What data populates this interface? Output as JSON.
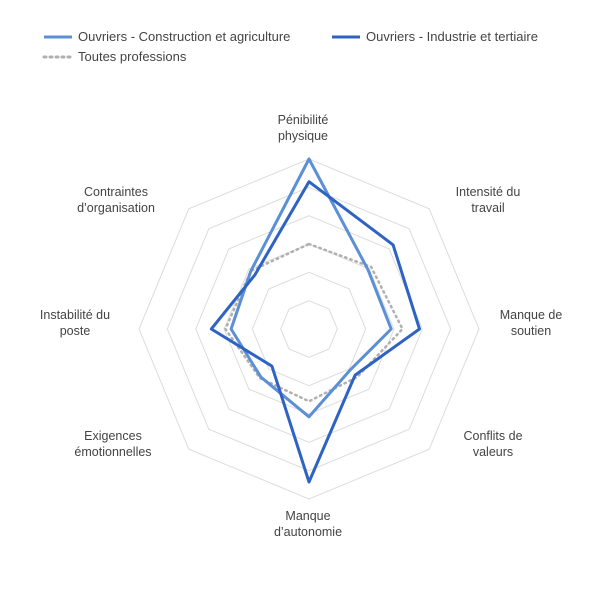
{
  "chart_data": {
    "type": "radar",
    "categories": [
      [
        "Pénibilité",
        "physique"
      ],
      [
        "Intensité du",
        "travail"
      ],
      [
        "Manque de",
        "soutien"
      ],
      [
        "Conflits de",
        "valeurs"
      ],
      [
        "Manque",
        "d’autonomie"
      ],
      [
        "Exigences",
        "émotionnelles"
      ],
      [
        "Instabilité du",
        "poste"
      ],
      [
        "Contraintes",
        "d’organisation"
      ]
    ],
    "rlim": [
      0,
      6
    ],
    "grid_levels": 6,
    "series": [
      {
        "name": "Ouvriers - Construction et agriculture",
        "values": [
          6.0,
          2.95,
          2.9,
          2.05,
          3.1,
          2.4,
          2.75,
          2.9
        ],
        "color": "#5b8fd6",
        "style": "solid"
      },
      {
        "name": "Ouvriers - Industrie et tertiaire",
        "values": [
          5.2,
          4.2,
          3.9,
          2.3,
          5.4,
          1.85,
          3.45,
          2.7
        ],
        "color": "#2e63c4",
        "style": "solid"
      },
      {
        "name": "Toutes professions",
        "values": [
          3.0,
          3.1,
          3.3,
          2.4,
          2.55,
          2.45,
          2.95,
          2.9
        ],
        "color": "#b0b0b0",
        "style": "dotted"
      }
    ],
    "legend_position": "top",
    "grid": true
  }
}
